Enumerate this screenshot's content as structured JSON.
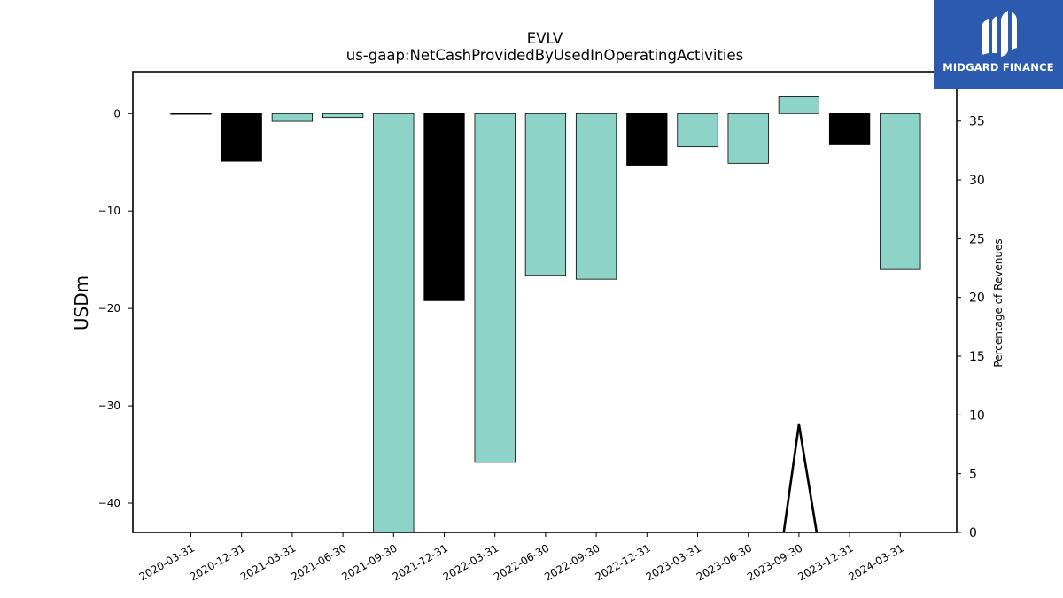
{
  "chart_data": {
    "type": "bar",
    "title": "EVLV",
    "subtitle": "us-gaap:NetCashProvidedByUsedInOperatingActivities",
    "ylabel": "USDm",
    "y2label": "Percentage of Revenues",
    "categories": [
      "2020-03-31",
      "2020-12-31",
      "2021-03-31",
      "2021-06-30",
      "2021-09-30",
      "2021-12-31",
      "2022-03-31",
      "2022-06-30",
      "2022-09-30",
      "2022-12-31",
      "2023-03-31",
      "2023-06-30",
      "2023-09-30",
      "2023-12-31",
      "2024-03-31"
    ],
    "values": [
      0.0,
      -4.9,
      -0.8,
      -0.4,
      -43.0,
      -19.2,
      -35.8,
      -16.6,
      -17.0,
      -5.3,
      -3.4,
      -5.1,
      1.8,
      -3.2,
      -16.0
    ],
    "bar_colors": [
      "#000000",
      "#000000",
      "#8dd3c7",
      "#8dd3c7",
      "#8dd3c7",
      "#000000",
      "#8dd3c7",
      "#8dd3c7",
      "#8dd3c7",
      "#000000",
      "#8dd3c7",
      "#8dd3c7",
      "#8dd3c7",
      "#000000",
      "#8dd3c7"
    ],
    "ylim": [
      -43,
      4.3
    ],
    "yticks": [
      0,
      -10,
      -20,
      -30,
      -40
    ],
    "y2lim": [
      0,
      39.2
    ],
    "y2ticks": [
      0,
      5,
      10,
      15,
      20,
      25,
      30,
      35
    ],
    "pct_line": {
      "x_index": [
        11.7,
        12.0,
        12.35
      ],
      "values": [
        0,
        9.2,
        0
      ]
    },
    "teal": "#8dd3c7",
    "black": "#000000"
  },
  "logo": {
    "text": "MIDGARD FINANCE",
    "color": "#2b5aae"
  }
}
